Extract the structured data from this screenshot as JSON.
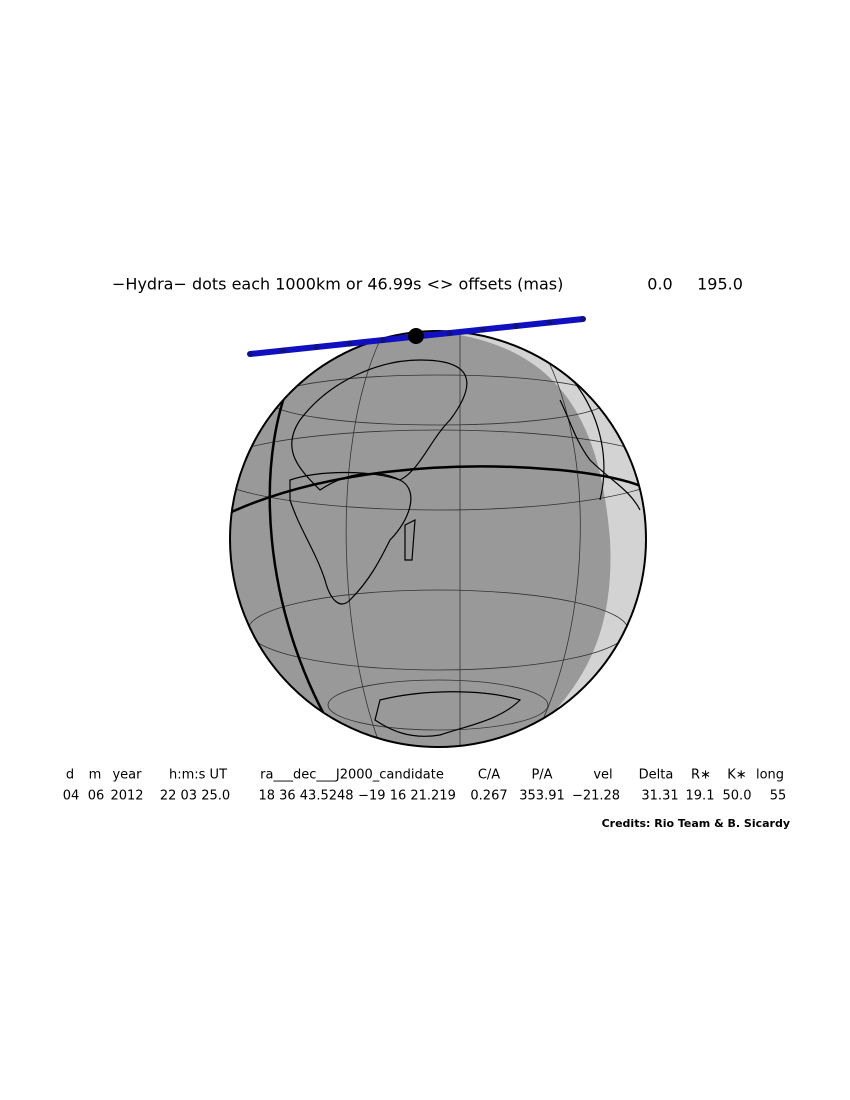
{
  "title": "−Hydra− dots each 1000km or 46.99s <> offsets (mas)",
  "offsets": [
    "0.0",
    "195.0"
  ],
  "table": {
    "headers": [
      "d",
      "m",
      "year",
      "h:m:s UT",
      "ra___dec___J2000_candidate",
      "C/A",
      "P/A",
      "vel",
      "Delta",
      "R∗",
      "K∗",
      "long"
    ],
    "values": [
      "04",
      "06",
      "2012",
      "22 03 25.0",
      "18 36 43.5248",
      "−19 16 21.219",
      "0.267",
      "353.91",
      "−21.28",
      "31.31",
      "19.1",
      "50.0",
      "55"
    ]
  },
  "credits": "Credits: Rio Team & B. Sicardy"
}
